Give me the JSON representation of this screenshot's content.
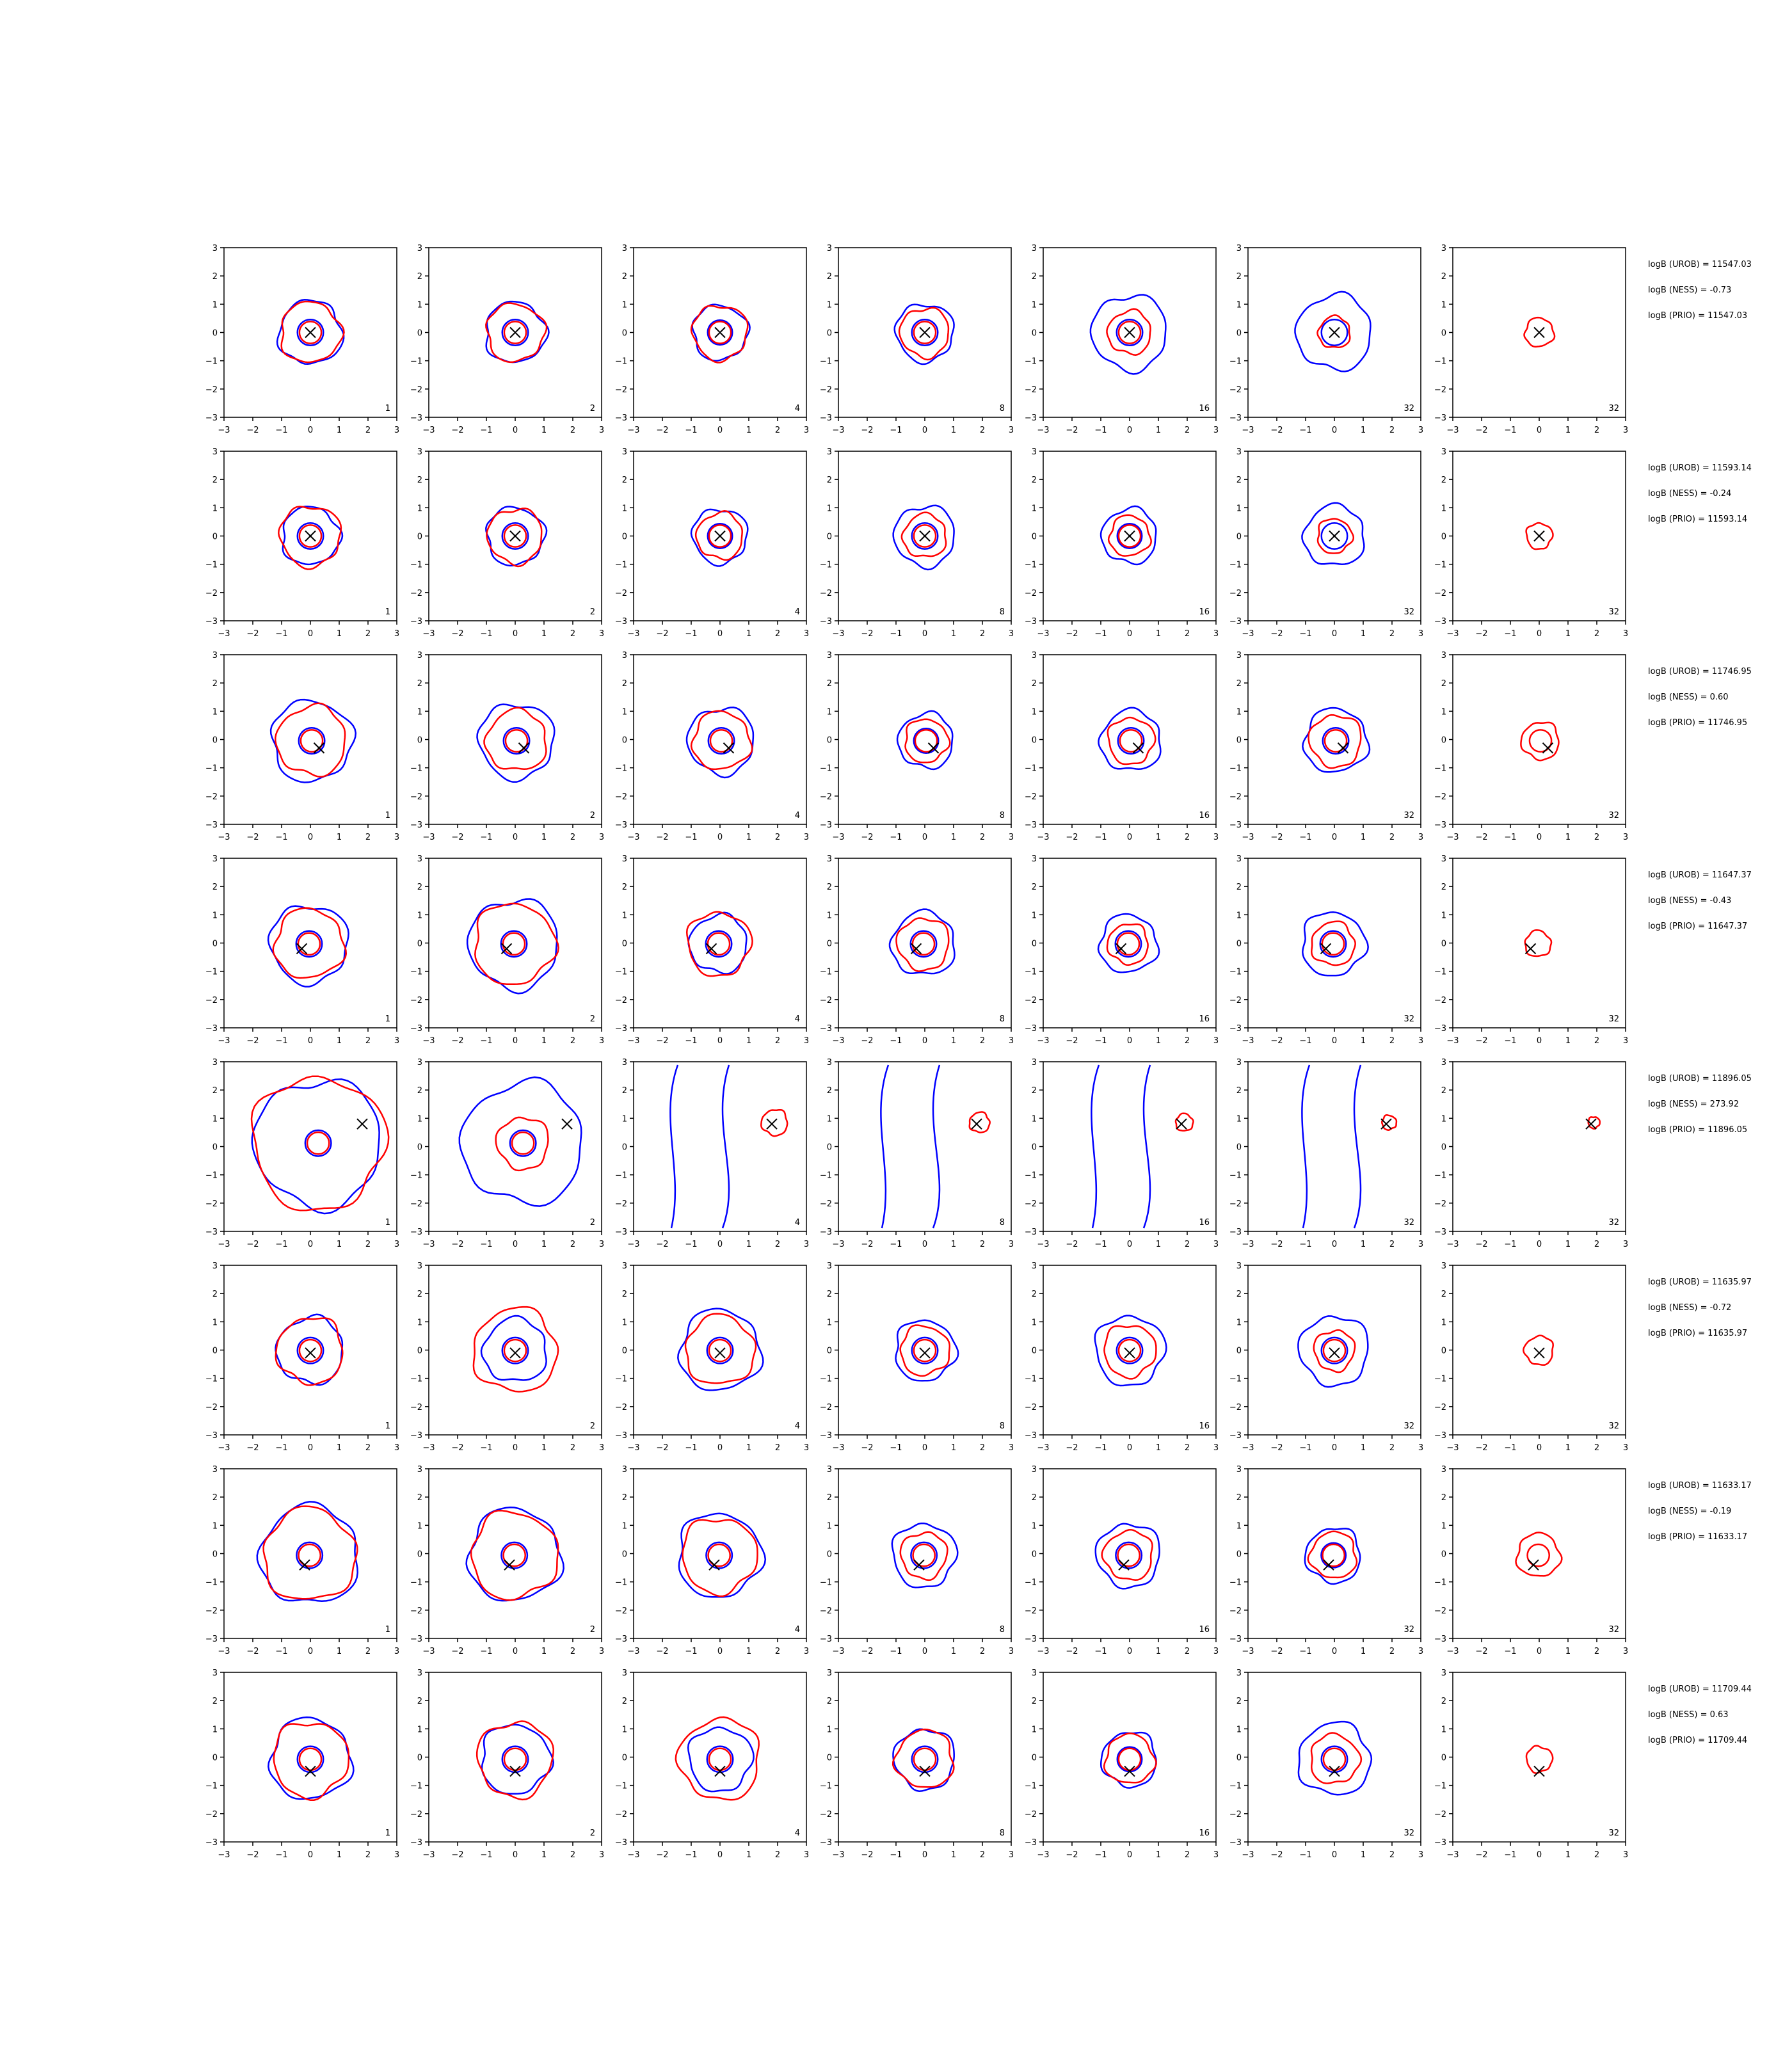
{
  "figure": {
    "rows": 8,
    "cols": 7,
    "colors": {
      "blue": "#0000ff",
      "red": "#ff0000",
      "marker": "#000000",
      "axis": "#000000"
    }
  },
  "chart_data": {
    "type": "contour",
    "xlim": [
      -3,
      3
    ],
    "ylim": [
      -3,
      3
    ],
    "xticks": [
      "−3",
      "−2",
      "−1",
      "0",
      "1",
      "2",
      "3"
    ],
    "yticks": [
      "3",
      "2",
      "1",
      "0",
      "−1",
      "−2",
      "−3"
    ],
    "grid": false,
    "column_labels": [
      "1",
      "2",
      "4",
      "8",
      "16",
      "32",
      "32"
    ],
    "rows": [
      {
        "truth": [
          0.0,
          0.0
        ],
        "annotations": [
          "logB (UROB) = 11547.03",
          "logB (NESS) = -0.73",
          "logB (PRIO) = 11547.03"
        ],
        "blue_r": [
          1.1,
          1.05,
          0.95,
          1.0,
          1.3,
          1.3,
          0
        ],
        "red_r": [
          1.05,
          1.0,
          0.95,
          0.85,
          0.75,
          0.55,
          0.5
        ]
      },
      {
        "truth": [
          0.0,
          0.0
        ],
        "annotations": [
          "logB (UROB) = 11593.14",
          "logB (NESS) = -0.24",
          "logB (PRIO) = 11593.14"
        ],
        "blue_r": [
          1.0,
          1.0,
          0.95,
          1.05,
          0.95,
          1.05,
          0
        ],
        "red_r": [
          1.05,
          0.95,
          0.8,
          0.75,
          0.7,
          0.6,
          0.45
        ]
      },
      {
        "truth": [
          0.3,
          -0.3
        ],
        "annotations": [
          "logB (UROB) = 11746.95",
          "logB (NESS) = 0.60",
          "logB (PRIO) = 11746.95"
        ],
        "blue_r": [
          1.4,
          1.3,
          1.15,
          0.95,
          1.05,
          1.1,
          0
        ],
        "red_r": [
          1.2,
          1.05,
          1.0,
          0.75,
          0.8,
          0.9,
          0.65
        ]
      },
      {
        "truth": [
          -0.3,
          -0.2
        ],
        "annotations": [
          "logB (UROB) = 11647.37",
          "logB (NESS) = -0.43",
          "logB (PRIO) = 11647.37"
        ],
        "blue_r": [
          1.35,
          1.55,
          1.0,
          1.1,
          1.0,
          1.1,
          0
        ],
        "red_r": [
          1.2,
          1.4,
          1.1,
          0.9,
          0.7,
          0.75,
          0.45
        ]
      },
      {
        "truth": [
          1.8,
          0.8
        ],
        "annotations": [
          "logB (UROB) = 11896.05",
          "logB (NESS) = 273.92",
          "logB (PRIO) = 11896.05"
        ],
        "blue_r": [
          2.2,
          2.1,
          0,
          0,
          0,
          0,
          0
        ],
        "red_r": [
          2.3,
          0.9,
          0.45,
          0.35,
          0.3,
          0.25,
          0.2
        ]
      },
      {
        "truth": [
          0.0,
          -0.1
        ],
        "annotations": [
          "logB (UROB) = 11635.97",
          "logB (NESS) = -0.72",
          "logB (PRIO) = 11635.97"
        ],
        "blue_r": [
          1.15,
          1.1,
          1.4,
          1.05,
          1.2,
          1.2,
          0
        ],
        "red_r": [
          1.15,
          1.45,
          1.2,
          0.85,
          0.9,
          0.7,
          0.5
        ]
      },
      {
        "truth": [
          -0.2,
          -0.4
        ],
        "annotations": [
          "logB (UROB) = 11633.17",
          "logB (NESS) = -0.19",
          "logB (PRIO) = 11633.17"
        ],
        "blue_r": [
          1.7,
          1.6,
          1.45,
          1.1,
          1.1,
          0.95,
          0
        ],
        "red_r": [
          1.6,
          1.5,
          1.3,
          0.8,
          0.85,
          0.8,
          0.75
        ]
      },
      {
        "truth": [
          0.0,
          -0.5
        ],
        "annotations": [
          "logB (UROB) = 11709.44",
          "logB (NESS) = 0.63",
          "logB (PRIO) = 11709.44"
        ],
        "blue_r": [
          1.4,
          1.2,
          1.1,
          1.05,
          0.95,
          1.25,
          0
        ],
        "red_r": [
          1.3,
          1.3,
          1.4,
          1.0,
          0.85,
          0.85,
          0.45
        ]
      }
    ]
  }
}
